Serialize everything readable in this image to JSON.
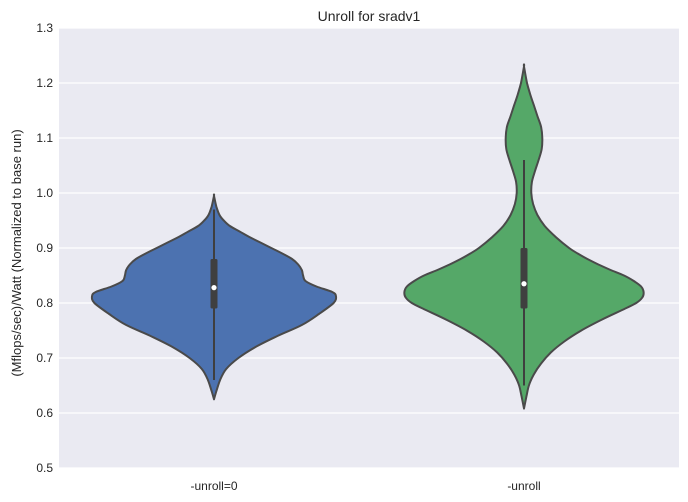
{
  "chart_data": {
    "type": "violin",
    "title": "Unroll for sradv1",
    "xlabel": "",
    "ylabel": "(Mflops/sec)/Watt (Normalized to base run)",
    "ylim": [
      0.5,
      1.3
    ],
    "yticks": [
      "0.5",
      "0.6",
      "0.7",
      "0.8",
      "0.9",
      "1.0",
      "1.1",
      "1.2",
      "1.3"
    ],
    "grid": true,
    "categories": [
      "-unroll=0",
      "-unroll"
    ],
    "colors": [
      "#4c72b0",
      "#55a868"
    ],
    "series": [
      {
        "category": "-unroll=0",
        "min": 0.625,
        "max": 0.995,
        "q1": 0.79,
        "median": 0.828,
        "q3": 0.88,
        "whisker_low": 0.66,
        "whisker_high": 0.97,
        "density": [
          [
            0.625,
            0.0
          ],
          [
            0.64,
            0.02
          ],
          [
            0.66,
            0.05
          ],
          [
            0.68,
            0.1
          ],
          [
            0.7,
            0.2
          ],
          [
            0.72,
            0.34
          ],
          [
            0.74,
            0.52
          ],
          [
            0.76,
            0.72
          ],
          [
            0.78,
            0.86
          ],
          [
            0.8,
            0.98
          ],
          [
            0.812,
            1.0
          ],
          [
            0.82,
            0.97
          ],
          [
            0.83,
            0.84
          ],
          [
            0.84,
            0.75
          ],
          [
            0.85,
            0.73
          ],
          [
            0.86,
            0.72
          ],
          [
            0.87,
            0.69
          ],
          [
            0.88,
            0.64
          ],
          [
            0.89,
            0.56
          ],
          [
            0.9,
            0.47
          ],
          [
            0.91,
            0.38
          ],
          [
            0.92,
            0.29
          ],
          [
            0.93,
            0.21
          ],
          [
            0.94,
            0.13
          ],
          [
            0.95,
            0.08
          ],
          [
            0.96,
            0.045
          ],
          [
            0.975,
            0.02
          ],
          [
            0.995,
            0.0
          ]
        ]
      },
      {
        "category": "-unroll",
        "min": 0.608,
        "max": 1.23,
        "q1": 0.79,
        "median": 0.835,
        "q3": 0.9,
        "whisker_low": 0.65,
        "whisker_high": 1.06,
        "density": [
          [
            0.608,
            0.0
          ],
          [
            0.63,
            0.02
          ],
          [
            0.65,
            0.04
          ],
          [
            0.67,
            0.08
          ],
          [
            0.69,
            0.14
          ],
          [
            0.71,
            0.22
          ],
          [
            0.73,
            0.33
          ],
          [
            0.75,
            0.47
          ],
          [
            0.77,
            0.64
          ],
          [
            0.79,
            0.83
          ],
          [
            0.8,
            0.92
          ],
          [
            0.81,
            0.97
          ],
          [
            0.82,
            0.98
          ],
          [
            0.83,
            0.96
          ],
          [
            0.84,
            0.9
          ],
          [
            0.85,
            0.82
          ],
          [
            0.86,
            0.71
          ],
          [
            0.87,
            0.61
          ],
          [
            0.88,
            0.52
          ],
          [
            0.89,
            0.44
          ],
          [
            0.9,
            0.37
          ],
          [
            0.92,
            0.26
          ],
          [
            0.94,
            0.17
          ],
          [
            0.96,
            0.11
          ],
          [
            0.98,
            0.075
          ],
          [
            1.0,
            0.06
          ],
          [
            1.02,
            0.065
          ],
          [
            1.04,
            0.09
          ],
          [
            1.06,
            0.12
          ],
          [
            1.08,
            0.145
          ],
          [
            1.1,
            0.15
          ],
          [
            1.12,
            0.14
          ],
          [
            1.14,
            0.11
          ],
          [
            1.16,
            0.08
          ],
          [
            1.18,
            0.05
          ],
          [
            1.2,
            0.025
          ],
          [
            1.23,
            0.0
          ]
        ]
      }
    ]
  }
}
